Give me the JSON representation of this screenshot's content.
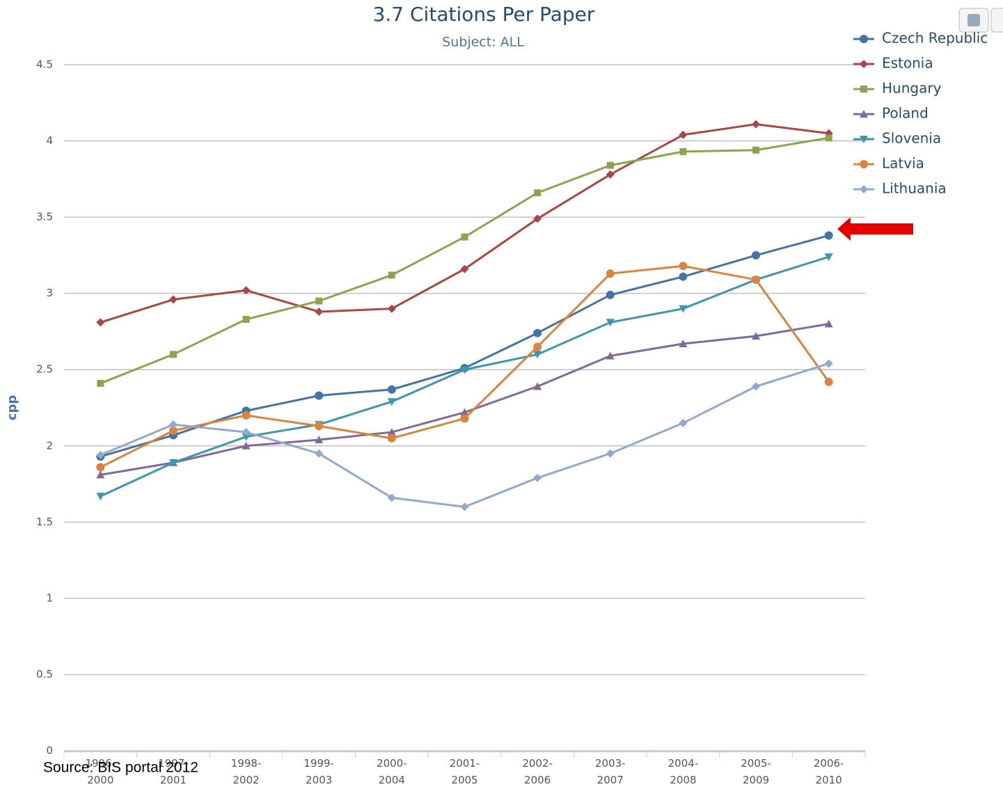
{
  "chart_data": {
    "type": "line",
    "title": "3.7 Citations Per Paper",
    "subtitle": "Subject: ALL",
    "y_label": "cpp",
    "source": "Source: BIS portal 2012",
    "categories": [
      "1996-2000",
      "1997-2001",
      "1998-2002",
      "1999-2003",
      "2000-2004",
      "2001-2005",
      "2002-2006",
      "2003-2007",
      "2004-2008",
      "2005-2009",
      "2006-2010"
    ],
    "ylim": [
      0,
      4.5
    ],
    "yticks": [
      0,
      0.5,
      1,
      1.5,
      2,
      2.5,
      3,
      3.5,
      4,
      4.5
    ],
    "grid": true,
    "legend": "top-right",
    "series": [
      {
        "name": "Czech Republic",
        "color": "#4572a7",
        "marker": "circle",
        "values": [
          1.93,
          2.07,
          2.23,
          2.33,
          2.37,
          2.51,
          2.74,
          2.99,
          3.11,
          3.25,
          3.38
        ]
      },
      {
        "name": "Estonia",
        "color": "#aa4643",
        "marker": "diamond",
        "values": [
          2.81,
          2.96,
          3.02,
          2.88,
          2.9,
          3.16,
          3.49,
          3.78,
          4.04,
          4.11,
          4.05
        ]
      },
      {
        "name": "Hungary",
        "color": "#89a54e",
        "marker": "square",
        "values": [
          2.41,
          2.6,
          2.83,
          2.95,
          3.12,
          3.37,
          3.66,
          3.84,
          3.93,
          3.94,
          4.02
        ]
      },
      {
        "name": "Poland",
        "color": "#80699b",
        "marker": "triangle",
        "values": [
          1.81,
          1.89,
          2.0,
          2.04,
          2.09,
          2.22,
          2.39,
          2.59,
          2.67,
          2.72,
          2.8
        ]
      },
      {
        "name": "Slovenia",
        "color": "#3d96ae",
        "marker": "triangle-down",
        "values": [
          1.67,
          1.89,
          2.06,
          2.14,
          2.29,
          2.5,
          2.6,
          2.81,
          2.9,
          3.09,
          3.24
        ]
      },
      {
        "name": "Latvia",
        "color": "#db843d",
        "marker": "circle",
        "values": [
          1.86,
          2.1,
          2.2,
          2.13,
          2.05,
          2.18,
          2.65,
          3.13,
          3.18,
          3.09,
          2.42
        ]
      },
      {
        "name": "Lithuania",
        "color": "#92a8cd",
        "marker": "diamond",
        "values": [
          1.94,
          2.14,
          2.09,
          1.95,
          1.66,
          1.6,
          1.79,
          1.95,
          2.15,
          2.39,
          2.54
        ]
      }
    ]
  }
}
